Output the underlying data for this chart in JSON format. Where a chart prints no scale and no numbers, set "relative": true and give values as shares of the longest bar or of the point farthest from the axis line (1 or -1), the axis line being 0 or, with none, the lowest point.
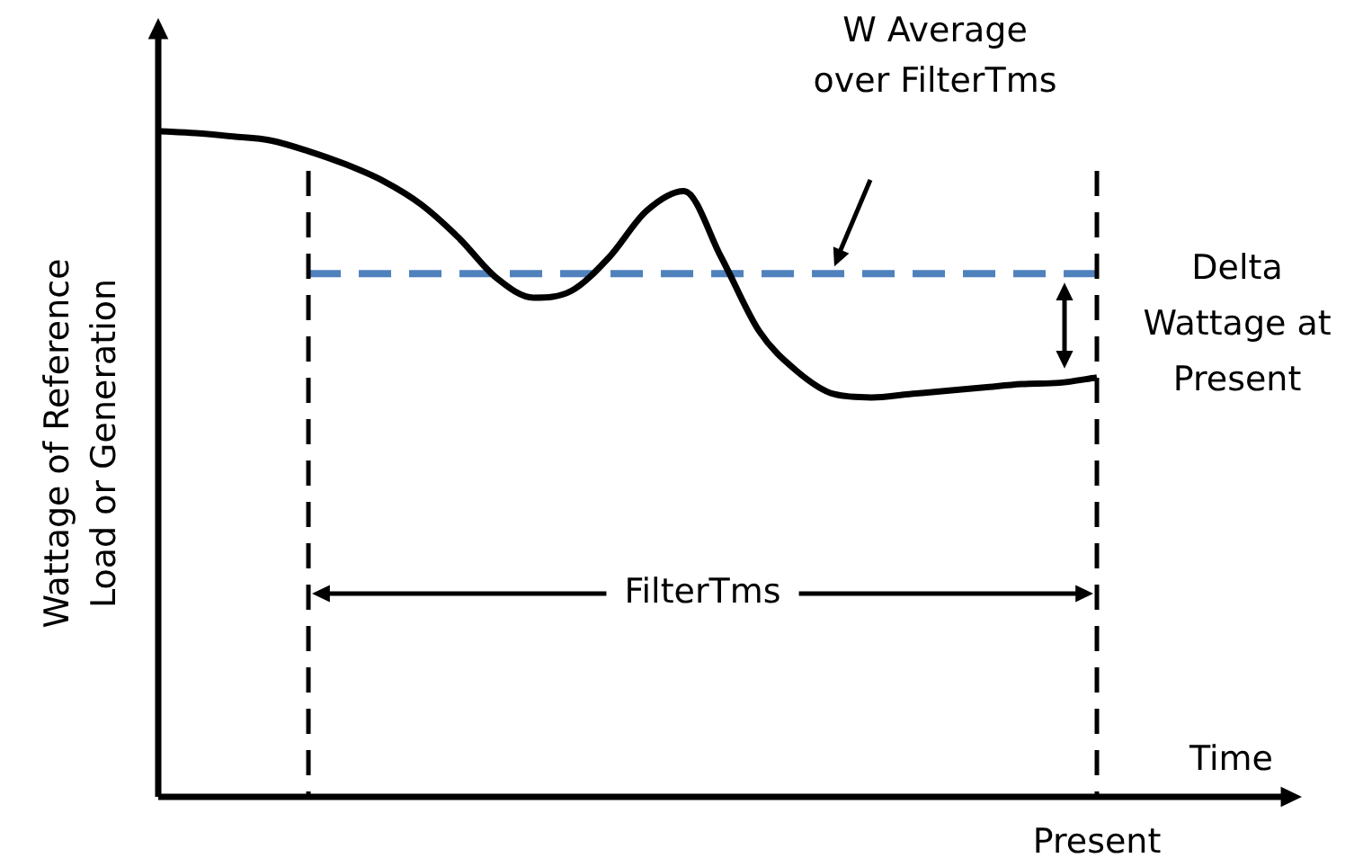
{
  "chart_data": {
    "type": "line",
    "relative": true,
    "xlabel": "Time",
    "ylabel": "Wattage of Reference Load or Generation",
    "tick_labels": false,
    "legend": false,
    "marker": "none",
    "categories": [
      null,
      null,
      null,
      null,
      null,
      null,
      null,
      null,
      null,
      null,
      null,
      null,
      null,
      null,
      null,
      null,
      null,
      null,
      null,
      null,
      null,
      null,
      null,
      null,
      null,
      null
    ],
    "series": [
      {
        "color": "#000000",
        "line_style": "solid",
        "values": [
          1.0,
          0.997,
          0.992,
          0.986,
          0.97,
          0.95,
          0.925,
          0.89,
          0.84,
          0.78,
          0.75,
          0.76,
          0.81,
          0.88,
          0.91,
          0.81,
          0.7,
          0.64,
          0.605,
          0.6,
          0.605,
          0.61,
          0.615,
          0.62,
          0.622,
          0.63
        ]
      },
      {
        "type": "line",
        "color": "#4f81bd",
        "line_style": "dashed",
        "values": [
          null,
          null,
          null,
          null,
          0.786,
          0.786,
          0.786,
          0.786,
          0.786,
          0.786,
          0.786,
          0.786,
          0.786,
          0.786,
          0.786,
          0.786,
          0.786,
          0.786,
          0.786,
          0.786,
          0.786,
          0.786,
          0.786,
          0.786,
          0.786,
          0.786
        ]
      }
    ],
    "annotations": [
      "W Average over FilterTms",
      "Delta Wattage at Present",
      "FilterTms",
      "Present"
    ]
  }
}
